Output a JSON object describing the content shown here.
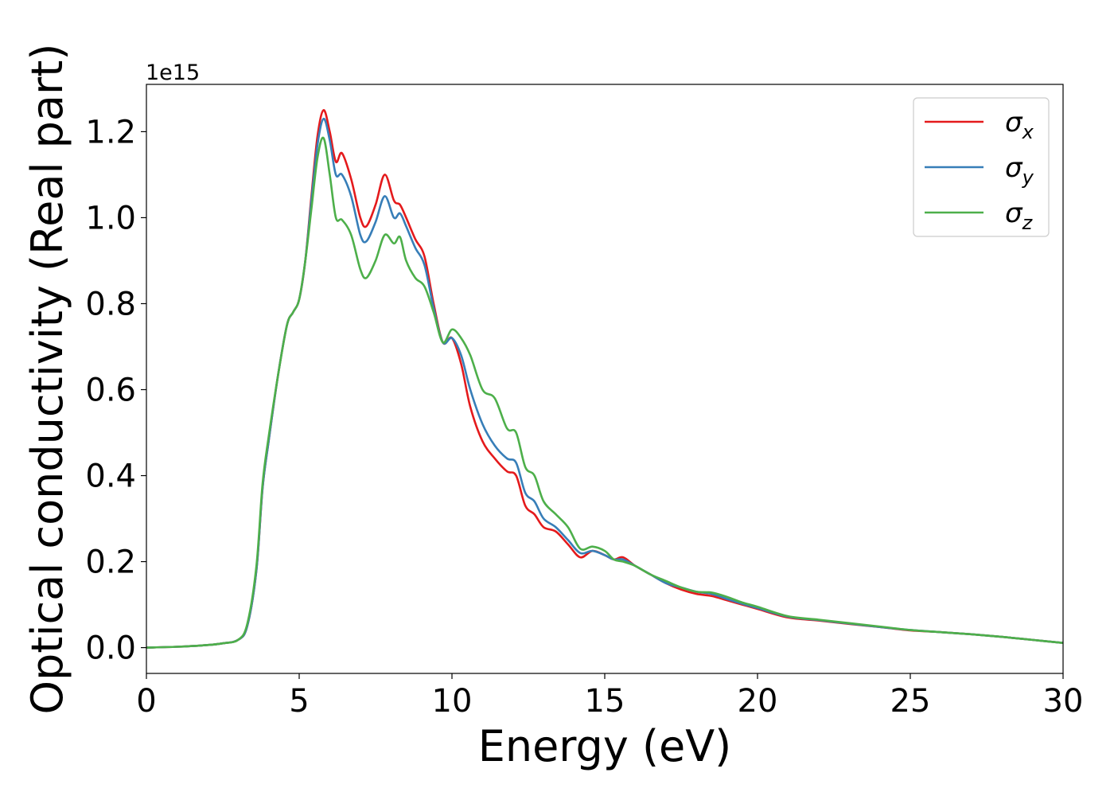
{
  "chart_data": {
    "type": "line",
    "xlabel": "Energy (eV)",
    "ylabel": "Optical conductivity (Real part)",
    "y_offset_label": "1e15",
    "xlim": [
      0,
      30
    ],
    "ylim": [
      -0.06,
      1.31
    ],
    "xticks": [
      0,
      5,
      10,
      15,
      20,
      25,
      30
    ],
    "xtick_labels": [
      "0",
      "5",
      "10",
      "15",
      "20",
      "25",
      "30"
    ],
    "yticks": [
      0.0,
      0.2,
      0.4,
      0.6,
      0.8,
      1.0,
      1.2
    ],
    "ytick_labels": [
      "0.0",
      "0.2",
      "0.4",
      "0.6",
      "0.8",
      "1.0",
      "1.2"
    ],
    "grid": false,
    "legend_position": "top-right",
    "series": [
      {
        "name": "σx",
        "color": "#e41a1c",
        "x": [
          0,
          1,
          2,
          2.5,
          3,
          3.3,
          3.6,
          3.8,
          4.0,
          4.3,
          4.6,
          4.8,
          5.0,
          5.2,
          5.4,
          5.6,
          5.8,
          6.0,
          6.2,
          6.4,
          6.7,
          7.0,
          7.2,
          7.5,
          7.8,
          8.1,
          8.3,
          8.5,
          8.8,
          9.1,
          9.4,
          9.7,
          10.0,
          10.3,
          10.6,
          11.0,
          11.4,
          11.8,
          12.1,
          12.4,
          12.7,
          13.0,
          13.4,
          13.8,
          14.2,
          14.6,
          15.0,
          15.3,
          15.6,
          16.0,
          16.5,
          17.0,
          17.5,
          18.0,
          18.5,
          19.0,
          19.5,
          20.0,
          21.0,
          22.0,
          23.0,
          24.0,
          25.0,
          26.0,
          27.0,
          28.0,
          29.0,
          30.0
        ],
        "values": [
          0,
          0.002,
          0.006,
          0.01,
          0.018,
          0.05,
          0.18,
          0.37,
          0.48,
          0.63,
          0.75,
          0.78,
          0.81,
          0.9,
          1.05,
          1.19,
          1.25,
          1.2,
          1.13,
          1.15,
          1.09,
          1.0,
          0.98,
          1.03,
          1.1,
          1.04,
          1.03,
          1.0,
          0.95,
          0.91,
          0.8,
          0.71,
          0.72,
          0.66,
          0.56,
          0.48,
          0.44,
          0.41,
          0.4,
          0.33,
          0.31,
          0.28,
          0.27,
          0.24,
          0.21,
          0.225,
          0.215,
          0.205,
          0.21,
          0.19,
          0.17,
          0.15,
          0.135,
          0.125,
          0.12,
          0.11,
          0.1,
          0.09,
          0.07,
          0.063,
          0.055,
          0.048,
          0.04,
          0.036,
          0.031,
          0.025,
          0.018,
          0.011
        ]
      },
      {
        "name": "σy",
        "color": "#377eb8",
        "x": [
          0,
          1,
          2,
          2.5,
          3,
          3.3,
          3.6,
          3.8,
          4.0,
          4.3,
          4.6,
          4.8,
          5.0,
          5.2,
          5.4,
          5.6,
          5.8,
          6.0,
          6.2,
          6.4,
          6.7,
          7.0,
          7.2,
          7.5,
          7.8,
          8.1,
          8.3,
          8.5,
          8.8,
          9.1,
          9.4,
          9.7,
          10.0,
          10.3,
          10.6,
          11.0,
          11.4,
          11.8,
          12.1,
          12.4,
          12.7,
          13.0,
          13.4,
          13.8,
          14.2,
          14.6,
          15.0,
          15.3,
          15.6,
          16.0,
          16.5,
          17.0,
          17.5,
          18.0,
          18.5,
          19.0,
          19.5,
          20.0,
          21.0,
          22.0,
          23.0,
          24.0,
          25.0,
          26.0,
          27.0,
          28.0,
          29.0,
          30.0
        ],
        "values": [
          0,
          0.002,
          0.006,
          0.01,
          0.018,
          0.05,
          0.18,
          0.37,
          0.48,
          0.63,
          0.75,
          0.78,
          0.81,
          0.9,
          1.04,
          1.17,
          1.23,
          1.18,
          1.1,
          1.1,
          1.05,
          0.96,
          0.945,
          0.99,
          1.05,
          1.0,
          1.01,
          0.98,
          0.93,
          0.89,
          0.79,
          0.71,
          0.72,
          0.68,
          0.6,
          0.52,
          0.47,
          0.44,
          0.43,
          0.36,
          0.34,
          0.3,
          0.28,
          0.25,
          0.22,
          0.225,
          0.215,
          0.205,
          0.205,
          0.19,
          0.17,
          0.15,
          0.14,
          0.13,
          0.125,
          0.113,
          0.102,
          0.092,
          0.072,
          0.064,
          0.056,
          0.048,
          0.041,
          0.036,
          0.031,
          0.025,
          0.018,
          0.011
        ]
      },
      {
        "name": "σz",
        "color": "#4daf4a",
        "x": [
          0,
          1,
          2,
          2.5,
          3,
          3.3,
          3.6,
          3.8,
          4.0,
          4.3,
          4.6,
          4.8,
          5.0,
          5.2,
          5.4,
          5.6,
          5.8,
          6.0,
          6.2,
          6.4,
          6.7,
          7.0,
          7.2,
          7.5,
          7.8,
          8.1,
          8.3,
          8.5,
          8.8,
          9.1,
          9.4,
          9.7,
          10.0,
          10.3,
          10.6,
          11.0,
          11.4,
          11.8,
          12.1,
          12.4,
          12.7,
          13.0,
          13.4,
          13.8,
          14.2,
          14.6,
          15.0,
          15.3,
          15.6,
          16.0,
          16.5,
          17.0,
          17.5,
          18.0,
          18.5,
          19.0,
          19.5,
          20.0,
          21.0,
          22.0,
          23.0,
          24.0,
          25.0,
          26.0,
          27.0,
          28.0,
          29.0,
          30.0
        ],
        "values": [
          0,
          0.002,
          0.006,
          0.01,
          0.018,
          0.055,
          0.19,
          0.38,
          0.49,
          0.63,
          0.75,
          0.78,
          0.81,
          0.9,
          1.02,
          1.14,
          1.185,
          1.1,
          1.0,
          0.995,
          0.96,
          0.88,
          0.86,
          0.9,
          0.96,
          0.94,
          0.955,
          0.9,
          0.86,
          0.84,
          0.78,
          0.71,
          0.74,
          0.72,
          0.68,
          0.6,
          0.58,
          0.51,
          0.5,
          0.42,
          0.4,
          0.34,
          0.31,
          0.28,
          0.23,
          0.235,
          0.225,
          0.205,
          0.2,
          0.19,
          0.17,
          0.155,
          0.14,
          0.13,
          0.128,
          0.118,
          0.105,
          0.095,
          0.073,
          0.065,
          0.057,
          0.049,
          0.041,
          0.036,
          0.031,
          0.025,
          0.018,
          0.011
        ]
      }
    ]
  }
}
